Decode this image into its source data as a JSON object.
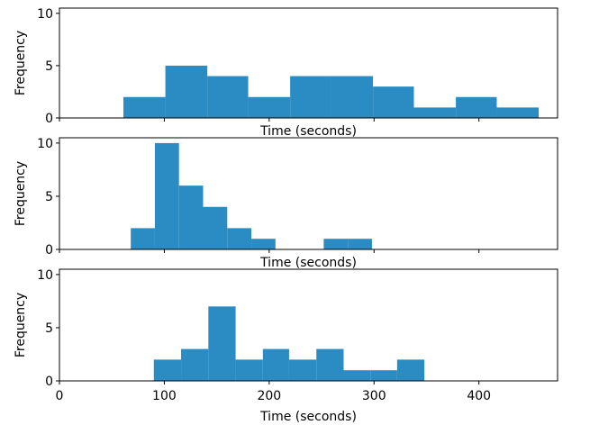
{
  "chart_data": [
    {
      "type": "bar",
      "histogram": true,
      "bins": [
        {
          "x0": 61,
          "x1": 101,
          "value": 2
        },
        {
          "x0": 101,
          "x1": 141,
          "value": 5
        },
        {
          "x0": 141,
          "x1": 180,
          "value": 4
        },
        {
          "x0": 180,
          "x1": 220,
          "value": 2
        },
        {
          "x0": 220,
          "x1": 259,
          "value": 4
        },
        {
          "x0": 259,
          "x1": 299,
          "value": 4
        },
        {
          "x0": 299,
          "x1": 338,
          "value": 3
        },
        {
          "x0": 338,
          "x1": 378,
          "value": 1
        },
        {
          "x0": 378,
          "x1": 417,
          "value": 2
        },
        {
          "x0": 417,
          "x1": 457,
          "value": 1
        }
      ],
      "xlabel": "Time (seconds)",
      "ylabel": "Frequency",
      "xlim": [
        0,
        475
      ],
      "ylim": [
        0,
        10.5
      ],
      "xticks": [
        0,
        100,
        200,
        300,
        400
      ],
      "yticks": [
        0,
        5,
        10
      ],
      "show_xtick_labels": false,
      "grid": false,
      "color": "#2b8cc4"
    },
    {
      "type": "bar",
      "histogram": true,
      "bins": [
        {
          "x0": 68,
          "x1": 91,
          "value": 2
        },
        {
          "x0": 91,
          "x1": 114,
          "value": 10
        },
        {
          "x0": 114,
          "x1": 137,
          "value": 6
        },
        {
          "x0": 137,
          "x1": 160,
          "value": 4
        },
        {
          "x0": 160,
          "x1": 183,
          "value": 2
        },
        {
          "x0": 183,
          "x1": 206,
          "value": 1
        },
        {
          "x0": 206,
          "x1": 229,
          "value": 0
        },
        {
          "x0": 229,
          "x1": 252,
          "value": 0
        },
        {
          "x0": 252,
          "x1": 275,
          "value": 1
        },
        {
          "x0": 275,
          "x1": 298,
          "value": 1
        }
      ],
      "xlabel": "Time (seconds)",
      "ylabel": "Frequency",
      "xlim": [
        0,
        475
      ],
      "ylim": [
        0,
        10.5
      ],
      "xticks": [
        0,
        100,
        200,
        300,
        400
      ],
      "yticks": [
        0,
        5,
        10
      ],
      "show_xtick_labels": false,
      "grid": false,
      "color": "#2b8cc4"
    },
    {
      "type": "bar",
      "histogram": true,
      "bins": [
        {
          "x0": 90,
          "x1": 116,
          "value": 2
        },
        {
          "x0": 116,
          "x1": 142,
          "value": 3
        },
        {
          "x0": 142,
          "x1": 168,
          "value": 7
        },
        {
          "x0": 168,
          "x1": 194,
          "value": 2
        },
        {
          "x0": 194,
          "x1": 219,
          "value": 3
        },
        {
          "x0": 219,
          "x1": 245,
          "value": 2
        },
        {
          "x0": 245,
          "x1": 271,
          "value": 3
        },
        {
          "x0": 271,
          "x1": 297,
          "value": 1
        },
        {
          "x0": 297,
          "x1": 322,
          "value": 1
        },
        {
          "x0": 322,
          "x1": 348,
          "value": 2
        }
      ],
      "xlabel": "Time (seconds)",
      "ylabel": "Frequency",
      "xlim": [
        0,
        475
      ],
      "ylim": [
        0,
        10.5
      ],
      "xticks": [
        0,
        100,
        200,
        300,
        400
      ],
      "yticks": [
        0,
        5,
        10
      ],
      "show_xtick_labels": true,
      "grid": false,
      "color": "#2b8cc4"
    }
  ]
}
